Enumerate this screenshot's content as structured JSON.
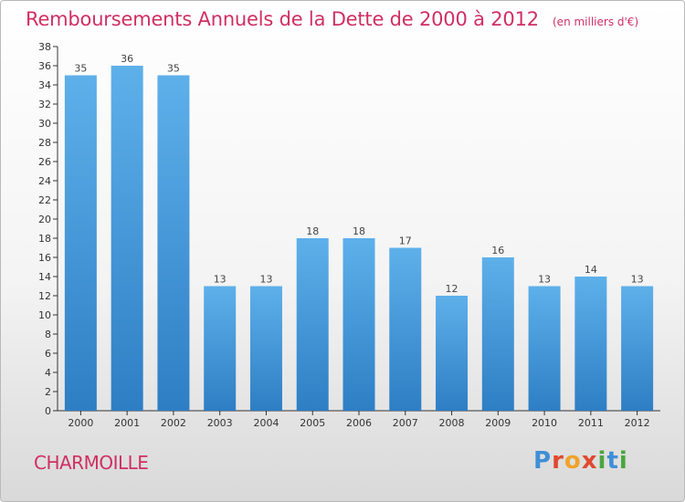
{
  "header": {
    "title": "Remboursements Annuels de la Dette de 2000 à 2012",
    "subtitle": "(en milliers d'€)"
  },
  "footer": {
    "city": "CHARMOILLE",
    "logo": "Proxiti"
  },
  "colors": {
    "title": "#d02f63",
    "bar_top": "#5eb0ea",
    "bar_bottom": "#2e7ec4",
    "axis": "#333333"
  },
  "chart_data": {
    "type": "bar",
    "title": "Remboursements Annuels de la Dette de 2000 à 2012",
    "xlabel": "",
    "ylabel": "",
    "categories": [
      "2000",
      "2001",
      "2002",
      "2003",
      "2004",
      "2005",
      "2006",
      "2007",
      "2008",
      "2009",
      "2010",
      "2011",
      "2012"
    ],
    "values": [
      35,
      36,
      35,
      13,
      13,
      18,
      18,
      17,
      12,
      16,
      13,
      14,
      13
    ],
    "ylim": [
      0,
      38
    ],
    "yticks": [
      0,
      2,
      4,
      6,
      8,
      10,
      12,
      14,
      16,
      18,
      20,
      22,
      24,
      26,
      28,
      30,
      32,
      34,
      36,
      38
    ],
    "grid": false,
    "legend": "none"
  }
}
